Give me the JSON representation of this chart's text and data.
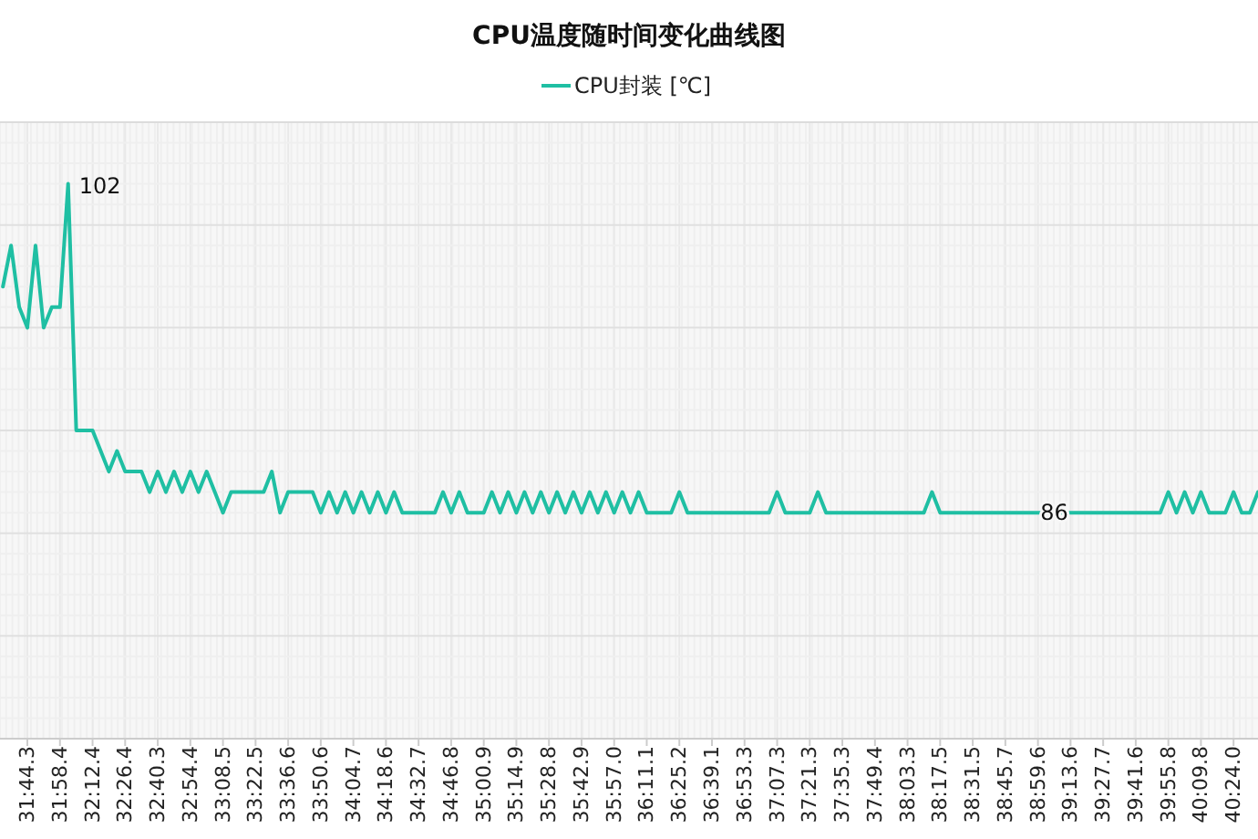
{
  "chart_data": {
    "type": "line",
    "title": "CPU温度随时间变化曲线图",
    "legend": "top",
    "grid": true,
    "marker": "none",
    "line_style": "solid",
    "ylim": [
      75,
      105
    ],
    "yticks": [
      {
        "value": 75,
        "label": null
      },
      {
        "value": 80,
        "label": null
      },
      {
        "value": 85,
        "label": null
      },
      {
        "value": 90,
        "label": null
      },
      {
        "value": 95,
        "label": null
      },
      {
        "value": 100,
        "label": null
      },
      {
        "value": 105,
        "label": null
      }
    ],
    "categories": [
      null,
      null,
      null,
      "31:44.3",
      null,
      null,
      null,
      "31:58.4",
      null,
      null,
      null,
      "32:12.4",
      null,
      null,
      null,
      "32:26.4",
      null,
      null,
      null,
      "32:40.3",
      null,
      null,
      null,
      "32:54.4",
      null,
      null,
      null,
      "33:08.5",
      null,
      null,
      null,
      "33:22.5",
      null,
      null,
      null,
      "33:36.6",
      null,
      null,
      null,
      "33:50.6",
      null,
      null,
      null,
      "34:04.7",
      null,
      null,
      null,
      "34:18.6",
      null,
      null,
      null,
      "34:32.7",
      null,
      null,
      null,
      "34:46.8",
      null,
      null,
      null,
      "35:00.9",
      null,
      null,
      null,
      "35:14.9",
      null,
      null,
      null,
      "35:28.8",
      null,
      null,
      null,
      "35:42.9",
      null,
      null,
      null,
      "35:57.0",
      null,
      null,
      null,
      "36:11.1",
      null,
      null,
      null,
      "36:25.2",
      null,
      null,
      null,
      "36:39.1",
      null,
      null,
      null,
      "36:53.3",
      null,
      null,
      null,
      "37:07.3",
      null,
      null,
      null,
      "37:21.3",
      null,
      null,
      null,
      "37:35.3",
      null,
      null,
      null,
      "37:49.4",
      null,
      null,
      null,
      "38:03.3",
      null,
      null,
      null,
      "38:17.5",
      null,
      null,
      null,
      "38:31.5",
      null,
      null,
      null,
      "38:45.7",
      null,
      null,
      null,
      "38:59.6",
      null,
      null,
      null,
      "39:13.6",
      null,
      null,
      null,
      "39:27.7",
      null,
      null,
      null,
      "39:41.6",
      null,
      null,
      null,
      "39:55.8",
      null,
      null,
      null,
      "40:09.8",
      null,
      null,
      null,
      "40:24.0",
      null,
      null,
      null
    ],
    "series": [
      {
        "name": "CPU封装 [℃]",
        "color": "#1fbfa3",
        "values": [
          97,
          99,
          96,
          95,
          99,
          95,
          96,
          96,
          102,
          90,
          90,
          90,
          89,
          88,
          89,
          88,
          88,
          88,
          87,
          88,
          87,
          88,
          87,
          88,
          87,
          88,
          87,
          86,
          87,
          87,
          87,
          87,
          87,
          88,
          86,
          87,
          87,
          87,
          87,
          86,
          87,
          86,
          87,
          86,
          87,
          86,
          87,
          86,
          87,
          86,
          86,
          86,
          86,
          86,
          87,
          86,
          87,
          86,
          86,
          86,
          87,
          86,
          87,
          86,
          87,
          86,
          87,
          86,
          87,
          86,
          87,
          86,
          87,
          86,
          87,
          86,
          87,
          86,
          87,
          86,
          86,
          86,
          86,
          87,
          86,
          86,
          86,
          86,
          86,
          86,
          86,
          86,
          86,
          86,
          86,
          87,
          86,
          86,
          86,
          86,
          87,
          86,
          86,
          86,
          86,
          86,
          86,
          86,
          86,
          86,
          86,
          86,
          86,
          86,
          87,
          86,
          86,
          86,
          86,
          86,
          86,
          86,
          86,
          86,
          86,
          86,
          86,
          86,
          86,
          86,
          86,
          86,
          86,
          86,
          86,
          86,
          86,
          86,
          86,
          86,
          86,
          86,
          86,
          87,
          86,
          87,
          86,
          87,
          86,
          86,
          86,
          87,
          86,
          86,
          87
        ],
        "value_labels": [
          null,
          null,
          null,
          null,
          null,
          null,
          null,
          null,
          "102",
          null,
          null,
          null,
          null,
          null,
          null,
          null,
          null,
          null,
          null,
          null,
          null,
          null,
          null,
          null,
          null,
          null,
          null,
          null,
          null,
          null,
          null,
          null,
          null,
          null,
          null,
          null,
          null,
          null,
          null,
          null,
          null,
          null,
          null,
          null,
          null,
          null,
          null,
          null,
          null,
          null,
          null,
          null,
          null,
          null,
          null,
          null,
          null,
          null,
          null,
          null,
          null,
          null,
          null,
          null,
          null,
          null,
          null,
          null,
          null,
          null,
          null,
          null,
          null,
          null,
          null,
          null,
          null,
          null,
          null,
          null,
          null,
          null,
          null,
          null,
          null,
          null,
          null,
          null,
          null,
          null,
          null,
          null,
          null,
          null,
          null,
          null,
          null,
          null,
          null,
          null,
          null,
          null,
          null,
          null,
          null,
          null,
          null,
          null,
          null,
          null,
          null,
          null,
          null,
          null,
          null,
          null,
          null,
          null,
          null,
          null,
          null,
          null,
          null,
          null,
          null,
          null,
          null,
          null,
          null,
          "86",
          null,
          null,
          null,
          null,
          null,
          null,
          null,
          null,
          null,
          null,
          null,
          null,
          null,
          null,
          null,
          null,
          null,
          null,
          null,
          null,
          null,
          null,
          null,
          null,
          null
        ]
      }
    ]
  }
}
